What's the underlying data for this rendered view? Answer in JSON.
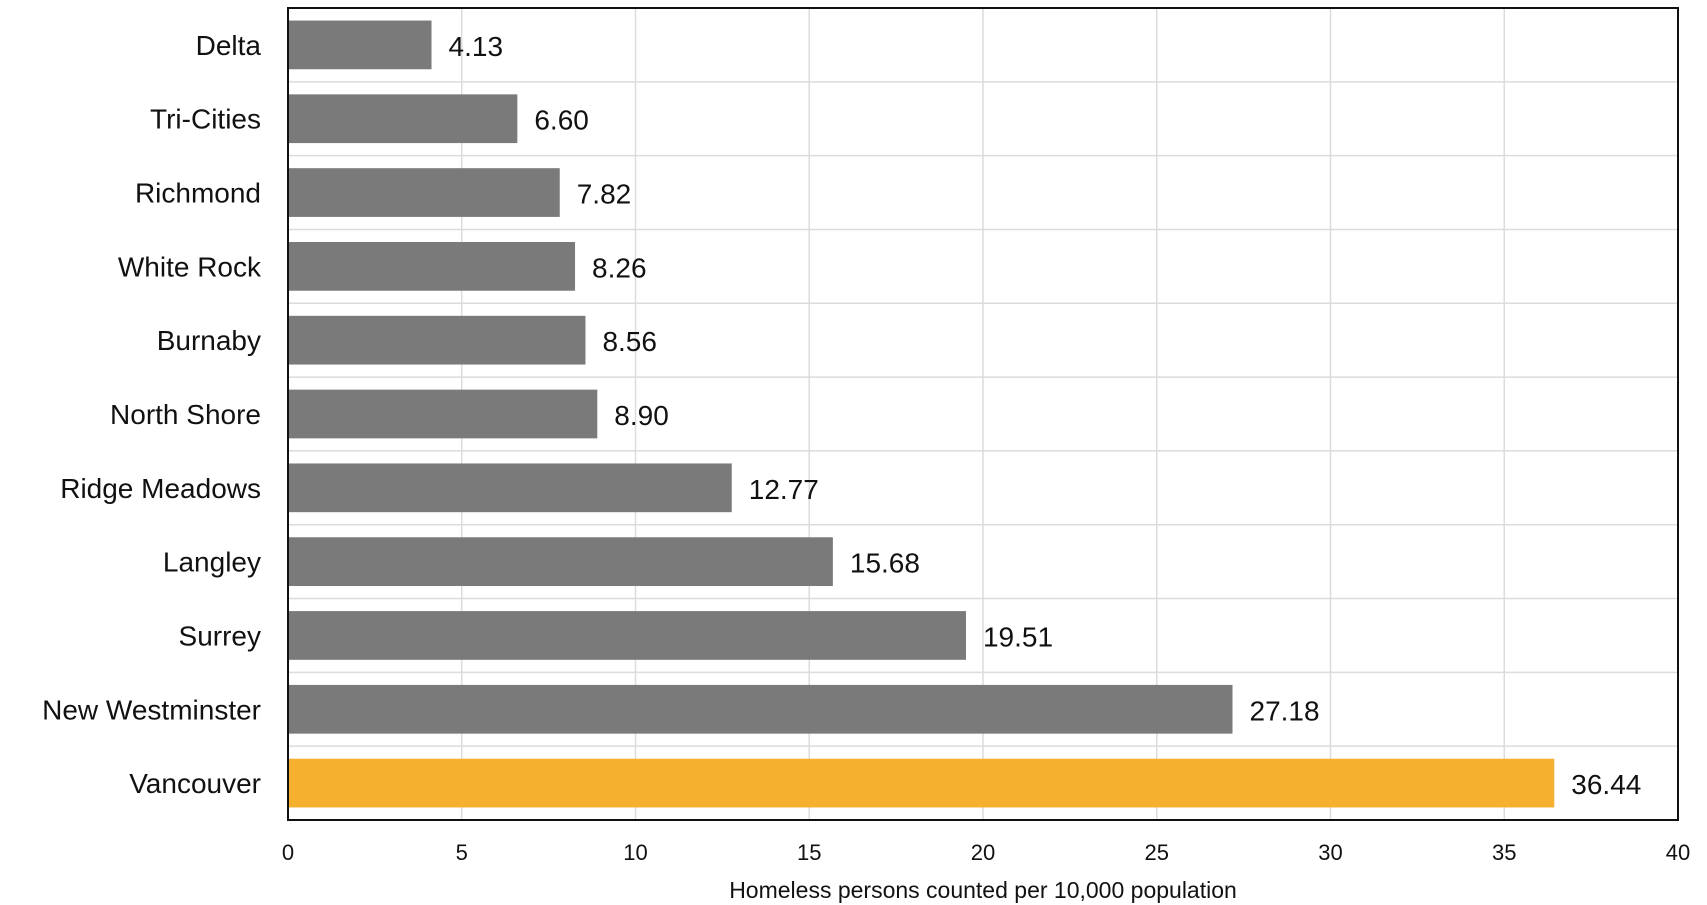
{
  "chart_data": {
    "type": "bar",
    "orientation": "horizontal",
    "categories": [
      "Delta",
      "Tri-Cities",
      "Richmond",
      "White Rock",
      "Burnaby",
      "North Shore",
      "Ridge Meadows",
      "Langley",
      "Surrey",
      "New Westminster",
      "Vancouver"
    ],
    "values": [
      4.13,
      6.6,
      7.82,
      8.26,
      8.56,
      8.9,
      12.77,
      15.68,
      19.51,
      27.18,
      36.44
    ],
    "value_labels": [
      "4.13",
      "6.60",
      "7.82",
      "8.26",
      "8.56",
      "8.90",
      "12.77",
      "15.68",
      "19.51",
      "27.18",
      "36.44"
    ],
    "title": "",
    "xlabel": "Homeless persons counted per 10,000 population",
    "ylabel": "",
    "xlim": [
      0,
      40
    ],
    "xticks": [
      "0",
      "5",
      "10",
      "15",
      "20",
      "25",
      "30",
      "35",
      "40"
    ],
    "grid": true,
    "colors": {
      "default": "#7a7a7a",
      "highlight": "#f4b02e",
      "grid": "#dcdcdc",
      "frame": "#111111"
    },
    "highlight_category": "Vancouver"
  }
}
